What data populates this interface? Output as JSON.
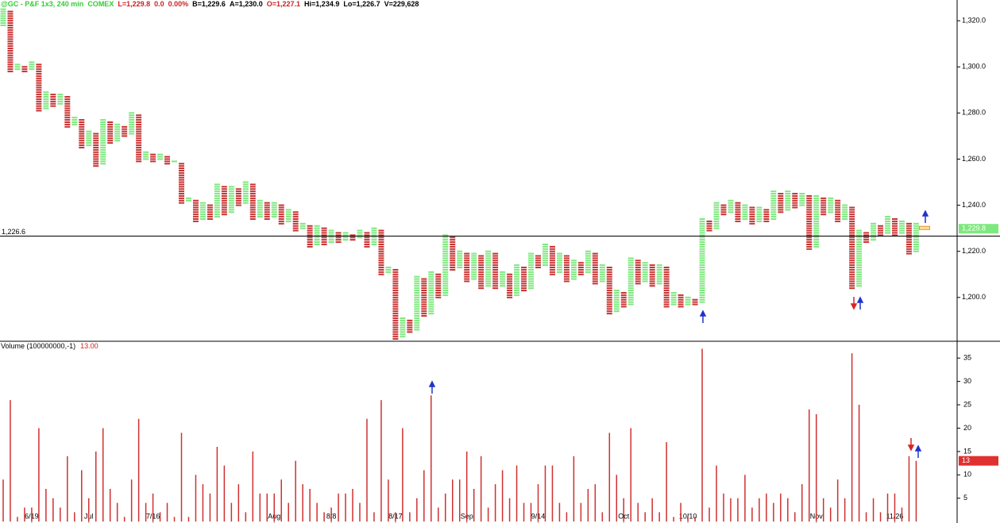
{
  "chart_data": [
    {
      "type": "pnf",
      "title_parts": [
        {
          "text": "@GC - P&F 1x3, 240 min",
          "color": "#33cc33"
        },
        {
          "text": "COMEX",
          "color": "#33cc33"
        },
        {
          "text": "L=1,229.8",
          "color": "#cc2222"
        },
        {
          "text": "0.0",
          "color": "#cc2222"
        },
        {
          "text": "0.00%",
          "color": "#cc2222"
        },
        {
          "text": "B=1,229.6",
          "color": "#000000"
        },
        {
          "text": "A=1,230.0",
          "color": "#000000"
        },
        {
          "text": "O=1,227.1",
          "color": "#cc2222"
        },
        {
          "text": "Hi=1,234.9",
          "color": "#000000"
        },
        {
          "text": "Lo=1,226.7",
          "color": "#000000"
        },
        {
          "text": "V=229,628",
          "color": "#000000"
        }
      ],
      "turns": [
        1318,
        1325,
        1298,
        1301,
        1298,
        1302,
        1281,
        1289,
        1283,
        1288,
        1274,
        1278,
        1265,
        1272,
        1257,
        1277,
        1267,
        1275,
        1270,
        1280,
        1259,
        1263,
        1259,
        1262,
        1258,
        1259,
        1241,
        1243,
        1233,
        1241,
        1234,
        1249,
        1236,
        1248,
        1240,
        1250,
        1234,
        1242,
        1234,
        1241,
        1232,
        1238,
        1229,
        1232,
        1222,
        1231,
        1223,
        1229,
        1224,
        1228,
        1225,
        1229,
        1222,
        1230,
        1210,
        1213,
        1182,
        1191,
        1185,
        1209,
        1192,
        1211,
        1200,
        1227,
        1212,
        1220,
        1207,
        1219,
        1204,
        1220,
        1204,
        1211,
        1200,
        1214,
        1203,
        1219,
        1213,
        1223,
        1210,
        1219,
        1207,
        1216,
        1210,
        1220,
        1206,
        1214,
        1193,
        1203,
        1196,
        1217,
        1206,
        1215,
        1205,
        1214,
        1196,
        1202,
        1196,
        1200,
        1197,
        1234,
        1229,
        1241,
        1236,
        1242,
        1233,
        1240,
        1232,
        1239,
        1233,
        1246,
        1237,
        1246,
        1239,
        1245,
        1221,
        1244,
        1236,
        1243,
        1233,
        1240,
        1204,
        1229,
        1224,
        1232,
        1227,
        1235,
        1227,
        1233,
        1219,
        1232
      ],
      "categories": [
        null,
        null,
        null,
        null,
        "6/19",
        null,
        null,
        null,
        null,
        null,
        null,
        null,
        "Jul",
        null,
        null,
        null,
        null,
        null,
        null,
        null,
        null,
        "7/16",
        null,
        null,
        null,
        null,
        null,
        null,
        null,
        null,
        null,
        null,
        null,
        null,
        null,
        null,
        null,
        null,
        "Aug",
        null,
        null,
        null,
        null,
        null,
        null,
        null,
        "8/8",
        null,
        null,
        null,
        null,
        null,
        null,
        null,
        null,
        "8/17",
        null,
        null,
        null,
        null,
        null,
        null,
        null,
        null,
        null,
        "Sep",
        null,
        null,
        null,
        null,
        null,
        null,
        null,
        null,
        null,
        "9/14",
        null,
        null,
        null,
        null,
        null,
        null,
        null,
        null,
        null,
        null,
        null,
        "Oct",
        null,
        null,
        null,
        null,
        null,
        null,
        null,
        null,
        "10/10",
        null,
        null,
        null,
        null,
        null,
        null,
        null,
        null,
        null,
        null,
        null,
        null,
        null,
        null,
        null,
        null,
        null,
        "Nov",
        null,
        null,
        null,
        null,
        null,
        null,
        null,
        null,
        null,
        null,
        "11/26",
        null,
        null,
        null
      ],
      "up_color": "#7ee87e",
      "down_color": "#c83232",
      "ylim": [
        1181,
        1329
      ],
      "yticks": [
        {
          "value": 1200,
          "label": "1,200.0"
        },
        {
          "value": 1220,
          "label": "1,220.0"
        },
        {
          "value": 1240,
          "label": "1,240.0"
        },
        {
          "value": 1260,
          "label": "1,260.0"
        },
        {
          "value": 1280,
          "label": "1,280.0"
        },
        {
          "value": 1300,
          "label": "1,300.0"
        },
        {
          "value": 1320,
          "label": "1,320.0"
        }
      ],
      "reference_line": {
        "value": 1226.6,
        "label": "1,226.6"
      },
      "last_price": {
        "value": 1229.8,
        "label": "1,229.8",
        "color": "#7ee87e"
      }
    },
    {
      "type": "bar",
      "title": "Volume (100000000,-1)",
      "current_label": "13.00",
      "color": "#d03030",
      "values": [
        9,
        26,
        1,
        3,
        3,
        20,
        7,
        5,
        3,
        14,
        2,
        11,
        5,
        15,
        20,
        7,
        4,
        1,
        9,
        22,
        4,
        6,
        2,
        4,
        1,
        19,
        1,
        10,
        8,
        6,
        16,
        12,
        4,
        8,
        2,
        15,
        6,
        6,
        6,
        9,
        4,
        13,
        8,
        7,
        4,
        2,
        3,
        6,
        6,
        7,
        4,
        22,
        2,
        26,
        9,
        2,
        20,
        2,
        5,
        11,
        27,
        3,
        6,
        9,
        9,
        15,
        7,
        14,
        3,
        8,
        11,
        5,
        12,
        4,
        4,
        8,
        12,
        12,
        4,
        2,
        14,
        4,
        7,
        8,
        2,
        19,
        10,
        5,
        20,
        4,
        2,
        5,
        2,
        17,
        1,
        4,
        1,
        1,
        37,
        3,
        12,
        6,
        5,
        5,
        10,
        3,
        5,
        6,
        4,
        6,
        5,
        2,
        8,
        24,
        23,
        5,
        3,
        9,
        5,
        36,
        25,
        2,
        5,
        2,
        6,
        6,
        3,
        14,
        13
      ],
      "ylim": [
        0,
        38.6
      ],
      "yticks": [
        5,
        10,
        15,
        20,
        25,
        30,
        35
      ]
    }
  ]
}
